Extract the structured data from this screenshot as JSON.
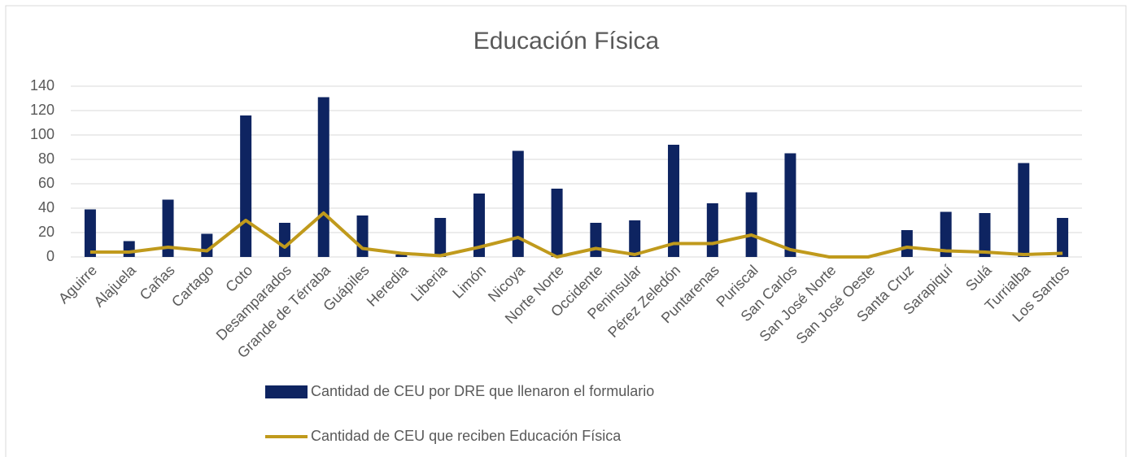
{
  "chart_data": {
    "type": "bar-line",
    "title": "Educación Física",
    "categories": [
      "Aguirre",
      "Alajuela",
      "Cañas",
      "Cartago",
      "Coto",
      "Desamparados",
      "Grande de Térraba",
      "Guápiles",
      "Heredia",
      "Liberia",
      "Limón",
      "Nicoya",
      "Norte Norte",
      "Occidente",
      "Peninsular",
      "Pérez Zeledón",
      "Puntarenas",
      "Puriscal",
      "San Carlos",
      "San José Norte",
      "San José Oeste",
      "Santa Cruz",
      "Sarapiquí",
      "Sulá",
      "Turrialba",
      "Los Santos"
    ],
    "series": [
      {
        "name": "Cantidad de CEU  por DRE que llenaron el formulario",
        "type": "bar",
        "color": "#0e2461",
        "values": [
          39,
          13,
          47,
          19,
          116,
          28,
          131,
          34,
          2,
          32,
          52,
          87,
          56,
          28,
          30,
          92,
          44,
          53,
          85,
          0,
          0,
          22,
          37,
          36,
          77,
          32
        ]
      },
      {
        "name": "Cantidad de CEU que reciben Educación Física",
        "type": "line",
        "color": "#c09a1c",
        "values": [
          4,
          4,
          8,
          5,
          30,
          8,
          36,
          7,
          3,
          1,
          8,
          16,
          0,
          7,
          2,
          11,
          11,
          18,
          6,
          0,
          0,
          8,
          5,
          4,
          2,
          3
        ]
      }
    ],
    "ylim": [
      0,
      140
    ],
    "yticks": [
      0,
      20,
      40,
      60,
      80,
      100,
      120,
      140
    ],
    "grid": true,
    "legend": "bottom"
  }
}
